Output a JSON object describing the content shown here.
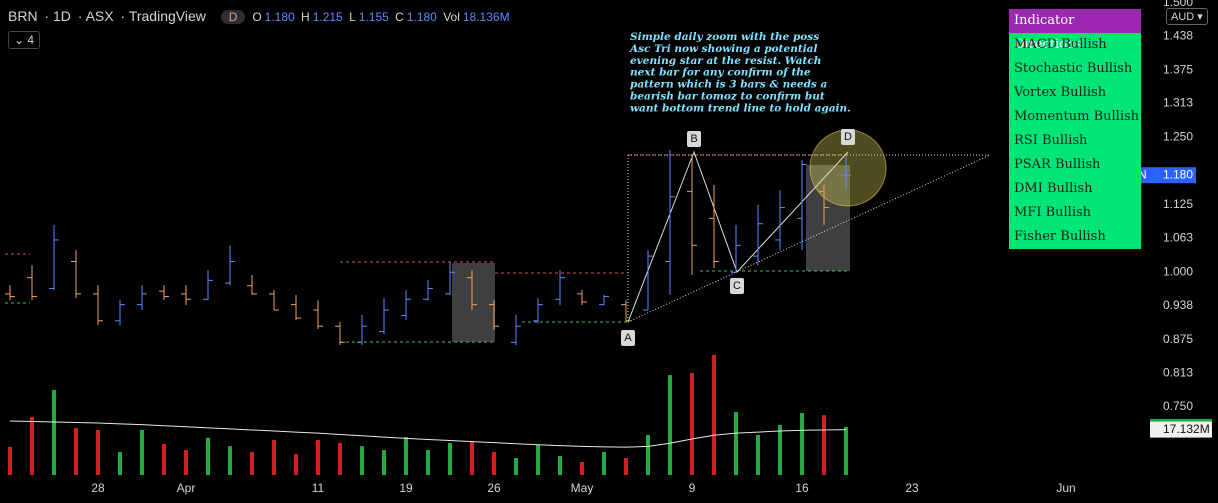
{
  "header": {
    "symbol": "BRN",
    "interval": "1D",
    "exchange": "ASX",
    "source": "TradingView",
    "badge": "D",
    "o_label": "O",
    "o": "1.180",
    "h_label": "H",
    "h": "1.215",
    "l_label": "L",
    "l": "1.155",
    "c_label": "C",
    "c": "1.180",
    "vol_label": "Vol",
    "vol": "18.136M",
    "indicator_count": "4"
  },
  "currency": "AUD",
  "indicator_panel": {
    "title": "Indicator Directions",
    "items": [
      "MACD Bullish",
      "Stochastic Bullish",
      "Vortex Bullish",
      "Momentum Bullish",
      "RSI Bullish",
      "PSAR Bullish",
      "DMI Bullish",
      "MFI Bullish",
      "Fisher Bullish"
    ]
  },
  "chart_data": {
    "type": "ohlc",
    "categories": [
      null,
      null,
      null,
      null,
      "28",
      null,
      null,
      null,
      "Apr",
      null,
      null,
      null,
      null,
      null,
      "11",
      null,
      null,
      null,
      "19",
      null,
      null,
      null,
      "26",
      null,
      null,
      null,
      "May",
      null,
      null,
      null,
      null,
      "9",
      null,
      null,
      null,
      null,
      "16",
      null,
      null,
      null,
      null,
      "23",
      null,
      null,
      null,
      null,
      null,
      null,
      "Jun",
      null,
      null,
      null
    ],
    "open": [
      0.96,
      0.99,
      0.97,
      1.02,
      0.96,
      0.91,
      0.94,
      0.965,
      0.96,
      0.95,
      0.98,
      0.975,
      0.96,
      0.94,
      0.93,
      0.9,
      0.87,
      0.89,
      0.92,
      0.95,
      0.96,
      0.99,
      0.94,
      0.87,
      0.91,
      0.95,
      0.96,
      0.94,
      0.94,
      0.93,
      1.02,
      1.15,
      1.1,
      1.0,
      1.03,
      1.06,
      1.1,
      1.15,
      1.18,
      null,
      null,
      null,
      null,
      null,
      null,
      null,
      null,
      null,
      null,
      null,
      null,
      null
    ],
    "high": [
      0.976,
      1.013,
      1.088,
      1.041,
      0.976,
      0.948,
      0.976,
      0.976,
      0.976,
      1.004,
      1.05,
      0.995,
      0.967,
      0.958,
      0.948,
      0.908,
      0.921,
      0.952,
      0.967,
      0.986,
      1.019,
      1.004,
      0.948,
      0.921,
      0.952,
      1.004,
      0.967,
      0.958,
      0.948,
      1.041,
      1.227,
      1.217,
      1.162,
      1.088,
      1.125,
      1.152,
      1.208,
      1.162,
      1.215,
      null,
      null,
      null,
      null,
      null,
      null,
      null,
      null,
      null,
      null,
      null,
      null,
      null
    ],
    "low": [
      0.948,
      0.948,
      0.967,
      0.952,
      0.902,
      0.902,
      0.93,
      0.948,
      0.939,
      0.948,
      0.976,
      0.958,
      0.93,
      0.911,
      0.895,
      0.865,
      0.865,
      0.885,
      0.911,
      0.948,
      0.958,
      0.93,
      0.893,
      0.865,
      0.905,
      0.939,
      0.939,
      0.939,
      0.908,
      0.93,
      0.958,
      0.995,
      1.008,
      1.0,
      1.013,
      1.041,
      1.041,
      1.088,
      1.155,
      null,
      null,
      null,
      null,
      null,
      null,
      null,
      null,
      null,
      null,
      null,
      null,
      null
    ],
    "close": [
      0.955,
      0.955,
      1.06,
      0.96,
      0.91,
      0.94,
      0.96,
      0.955,
      0.95,
      0.985,
      1.02,
      0.96,
      0.93,
      0.915,
      0.9,
      0.87,
      0.9,
      0.93,
      0.95,
      0.97,
      1.0,
      0.94,
      0.9,
      0.9,
      0.94,
      0.99,
      0.945,
      0.955,
      0.91,
      1.03,
      1.14,
      1.05,
      1.02,
      1.05,
      1.09,
      1.12,
      1.2,
      1.12,
      1.18,
      null,
      null,
      null,
      null,
      null,
      null,
      null,
      null,
      null,
      null,
      null,
      null,
      null
    ],
    "up_color": "#5b8cff",
    "down_color": "#f0a057",
    "ylim": [
      0.624,
      1.505
    ],
    "yticks": [
      {
        "value": 1.5,
        "label": "1.500"
      },
      1.438,
      1.375,
      1.313,
      {
        "value": 1.25,
        "label": "1.250"
      },
      1.125,
      1.063,
      {
        "value": 1.0,
        "label": "1.000"
      },
      0.938,
      0.875,
      0.813,
      {
        "value": 0.75,
        "label": "0.750"
      }
    ],
    "last_price": {
      "name": "BRN",
      "value": 1.18,
      "label": "1.180"
    },
    "points": [
      "A",
      "B",
      "C",
      "D"
    ],
    "annotation": [
      "Simple daily zoom with the poss",
      "Asc Tri now showing a potential",
      "evening star at the resist. Watch",
      "next bar for any confirm of the",
      "pattern which is 3 bars & needs a",
      "bearish bar tomoz to confirm but",
      "want bottom trend line to hold again."
    ],
    "volume": {
      "values": [
        10.6,
        21.9,
        32.1,
        17.7,
        17.0,
        8.7,
        17.0,
        11.7,
        9.4,
        14.0,
        10.9,
        8.7,
        13.2,
        7.9,
        13.2,
        12.1,
        10.9,
        9.4,
        14.3,
        9.4,
        12.1,
        12.5,
        8.7,
        6.4,
        11.3,
        7.2,
        4.9,
        8.7,
        6.4,
        15.1,
        37.7,
        38.5,
        45.3,
        23.8,
        15.1,
        18.9,
        23.4,
        22.6,
        18.136,
        null,
        null,
        null,
        null,
        null,
        null,
        null,
        null,
        null,
        null,
        null,
        null,
        null
      ],
      "value_labels": [
        null,
        null,
        null,
        null,
        null,
        null,
        null,
        null,
        null,
        null,
        null,
        null,
        null,
        null,
        null,
        null,
        null,
        null,
        null,
        null,
        null,
        null,
        null,
        null,
        null,
        null,
        null,
        null,
        null,
        null,
        null,
        null,
        null,
        null,
        null,
        null,
        null,
        null,
        "18.136M",
        null,
        null,
        null,
        null,
        null,
        null,
        null,
        null,
        null,
        null,
        null,
        null,
        null
      ],
      "up_color": "#22ab3e",
      "down_color": "#d32020",
      "ylim": [
        0,
        80
      ],
      "ma": {
        "color": "#e8e8e8",
        "values": [
          20.4,
          20.2,
          20.0,
          19.8,
          19.6,
          19.3,
          19.0,
          18.6,
          18.2,
          17.8,
          17.4,
          17.0,
          16.6,
          16.2,
          15.8,
          15.3,
          14.8,
          14.3,
          13.8,
          13.4,
          13.0,
          12.6,
          12.2,
          11.8,
          11.4,
          11.1,
          10.8,
          10.6,
          10.5,
          10.8,
          12.0,
          13.6,
          15.0,
          15.8,
          16.2,
          16.6,
          16.9,
          17.0,
          17.132,
          null,
          null,
          null,
          null,
          null,
          null,
          null,
          null,
          null,
          null,
          null,
          null,
          null
        ],
        "value_labels": [
          null,
          null,
          null,
          null,
          null,
          null,
          null,
          null,
          null,
          null,
          null,
          null,
          null,
          null,
          null,
          null,
          null,
          null,
          null,
          null,
          null,
          null,
          null,
          null,
          null,
          null,
          null,
          null,
          null,
          null,
          null,
          null,
          null,
          null,
          null,
          null,
          null,
          null,
          "17.132M",
          null,
          null,
          null,
          null,
          null,
          null,
          null,
          null,
          null,
          null,
          null,
          null,
          null
        ]
      }
    }
  }
}
